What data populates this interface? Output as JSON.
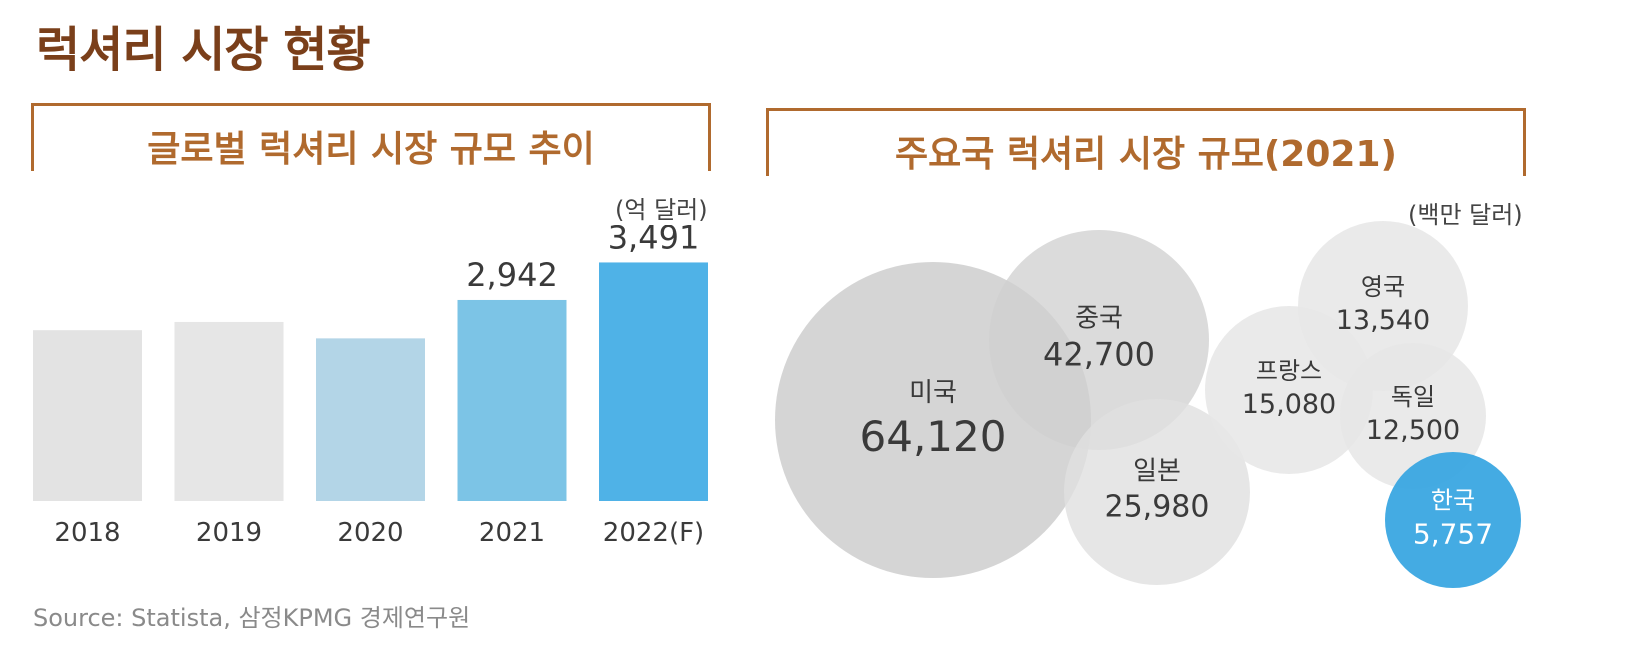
{
  "page_title": "럭셔리 시장 현황",
  "source": "Source: Statista, 삼정KPMG 경제연구원",
  "colors": {
    "title_brown": "#7a3f1a",
    "header_brown": "#b06a2e",
    "bar_palette": [
      "#e3e3e3",
      "#e6e6e6",
      "#b3d5e7",
      "#7cc4e6",
      "#4fb2e7"
    ],
    "bubble_grey": "#d5d5d5",
    "bubble_light": "#e6e6e6",
    "bubble_highlight": "#3aa6e2"
  },
  "chart_data": [
    {
      "type": "bar",
      "title": "글로벌 럭셔리 시장 규모 추이",
      "unit": "(억 달러)",
      "categories": [
        "2018",
        "2019",
        "2020",
        "2021",
        "2022(F)"
      ],
      "values": [
        2500,
        2620,
        2380,
        2942,
        3491
      ],
      "data_labels": [
        "",
        "",
        "",
        "2,942",
        "3,491"
      ],
      "ylim": [
        0,
        3600
      ],
      "grid": false,
      "legend": "none"
    },
    {
      "type": "bubble",
      "title": "주요국 럭셔리 시장 규모(2021)",
      "unit": "(백만 달러)",
      "items": [
        {
          "name": "미국",
          "value": 64120,
          "label": "64,120"
        },
        {
          "name": "중국",
          "value": 42700,
          "label": "42,700"
        },
        {
          "name": "일본",
          "value": 25980,
          "label": "25,980"
        },
        {
          "name": "프랑스",
          "value": 15080,
          "label": "15,080"
        },
        {
          "name": "영국",
          "value": 13540,
          "label": "13,540"
        },
        {
          "name": "독일",
          "value": 12500,
          "label": "12,500"
        },
        {
          "name": "한국",
          "value": 5757,
          "label": "5,757",
          "highlight": true
        }
      ]
    }
  ]
}
